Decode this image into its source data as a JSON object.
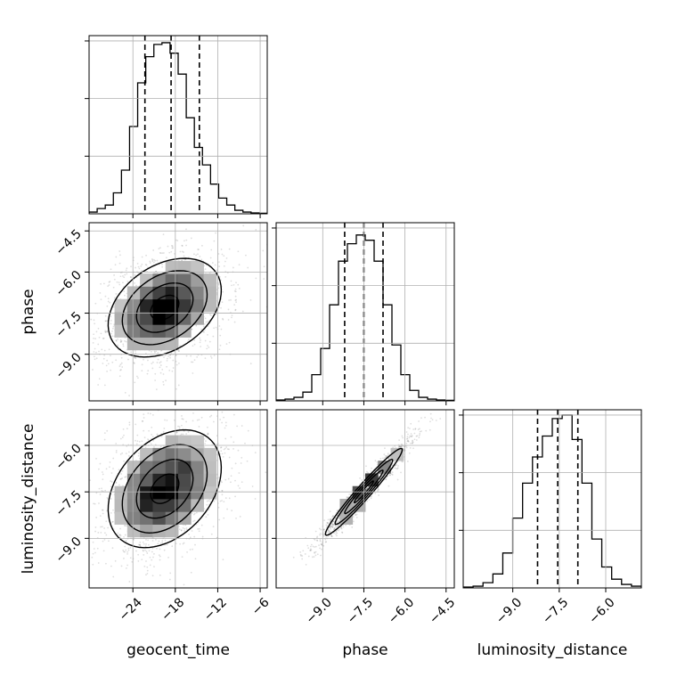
{
  "chart_data": {
    "type": "corner",
    "parameters": [
      "geocent_time",
      "phase",
      "luminosity_distance"
    ],
    "axis_labels": {
      "x": [
        "geocent_time",
        "phase",
        "luminosity_distance"
      ],
      "y": [
        "",
        "phase",
        "luminosity_distance"
      ]
    },
    "ranges": {
      "geocent_time": [
        -30.2,
        -5
      ],
      "phase": [
        -10.7,
        -4.2
      ],
      "luminosity_distance": [
        -10.6,
        -4.85
      ]
    },
    "ticks": {
      "geocent_time": [
        -24,
        -18,
        -12,
        -6
      ],
      "phase": [
        -9.0,
        -7.5,
        -6.0,
        -4.5
      ],
      "luminosity_distance": [
        -9.0,
        -7.5,
        -6.0
      ]
    },
    "tick_labels": {
      "geocent_time": [
        "−24",
        "−18",
        "−12",
        "−6"
      ],
      "phase": [
        "−9.0",
        "−7.5",
        "−6.0",
        "−4.5"
      ],
      "luminosity_distance": [
        "−9.0",
        "−7.5",
        "−6.0"
      ]
    },
    "quantiles": {
      "geocent_time": [
        -22.3,
        -18.6,
        -14.6
      ],
      "phase": [
        -8.2,
        -7.5,
        -6.8
      ],
      "luminosity_distance": [
        -8.2,
        -7.55,
        -6.9
      ]
    },
    "histograms": {
      "geocent_time": [
        0.01,
        0.03,
        0.05,
        0.12,
        0.25,
        0.5,
        0.75,
        0.9,
        0.97,
        0.98,
        0.92,
        0.8,
        0.55,
        0.38,
        0.28,
        0.17,
        0.09,
        0.05,
        0.02,
        0.01,
        0.005,
        0.003
      ],
      "phase": [
        0.005,
        0.01,
        0.02,
        0.05,
        0.15,
        0.3,
        0.55,
        0.8,
        0.9,
        0.95,
        0.92,
        0.8,
        0.55,
        0.32,
        0.15,
        0.06,
        0.02,
        0.01,
        0.005,
        0.003
      ],
      "luminosity_distance": [
        0.005,
        0.01,
        0.03,
        0.08,
        0.2,
        0.4,
        0.6,
        0.75,
        0.87,
        0.97,
        0.99,
        0.85,
        0.6,
        0.28,
        0.12,
        0.05,
        0.02,
        0.01
      ]
    },
    "pairs": [
      {
        "x": "geocent_time",
        "y": "phase",
        "mean": [
          -19.5,
          -7.3
        ],
        "std": [
          4.0,
          0.9
        ],
        "corr": 0.35
      },
      {
        "x": "geocent_time",
        "y": "luminosity_distance",
        "mean": [
          -19.5,
          -7.4
        ],
        "std": [
          4.0,
          0.95
        ],
        "corr": 0.35
      },
      {
        "x": "phase",
        "y": "luminosity_distance",
        "mean": [
          -7.5,
          -7.5
        ],
        "std": [
          0.7,
          0.7
        ],
        "corr": 0.97
      }
    ],
    "grid": true,
    "legend": "none"
  }
}
